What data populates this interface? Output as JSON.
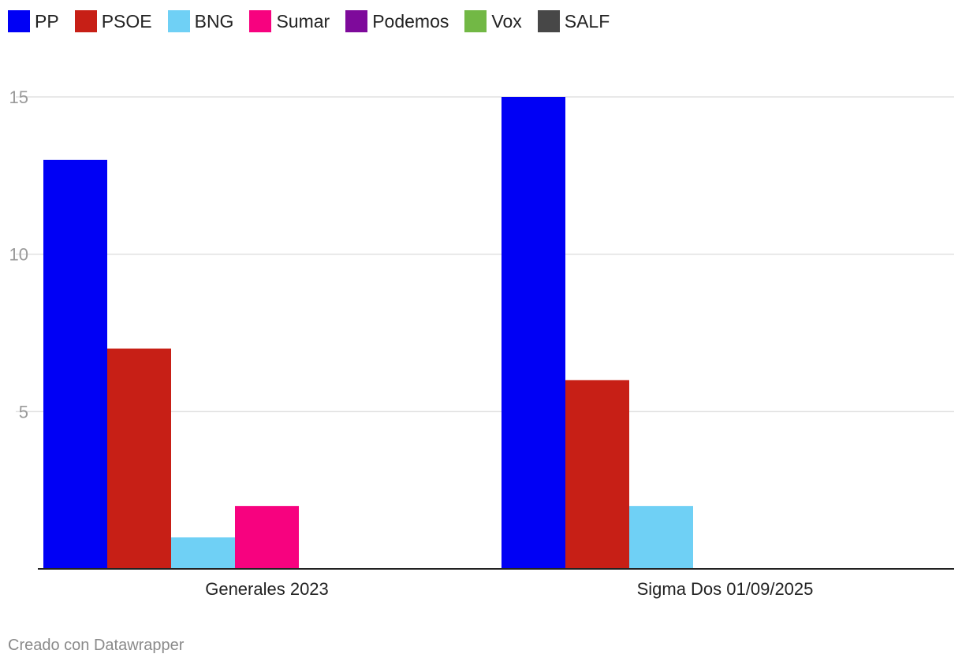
{
  "chart_data": {
    "type": "bar",
    "categories": [
      "Generales 2023",
      "Sigma Dos 01/09/2025"
    ],
    "series": [
      {
        "name": "PP",
        "color": "#0000f5",
        "values": [
          13,
          15
        ]
      },
      {
        "name": "PSOE",
        "color": "#c71f16",
        "values": [
          7,
          6
        ]
      },
      {
        "name": "BNG",
        "color": "#6fd0f5",
        "values": [
          1,
          2
        ]
      },
      {
        "name": "Sumar",
        "color": "#f7027f",
        "values": [
          2,
          0
        ]
      },
      {
        "name": "Podemos",
        "color": "#7e0a9b",
        "values": [
          0,
          0
        ]
      },
      {
        "name": "Vox",
        "color": "#72b845",
        "values": [
          0,
          0
        ]
      },
      {
        "name": "SALF",
        "color": "#474747",
        "values": [
          0,
          0
        ]
      }
    ],
    "yticks": [
      5,
      10,
      15
    ],
    "ylim": [
      0,
      15
    ],
    "grid": true,
    "legend_position": "top-left"
  },
  "footer": {
    "credit": "Creado con Datawrapper"
  }
}
